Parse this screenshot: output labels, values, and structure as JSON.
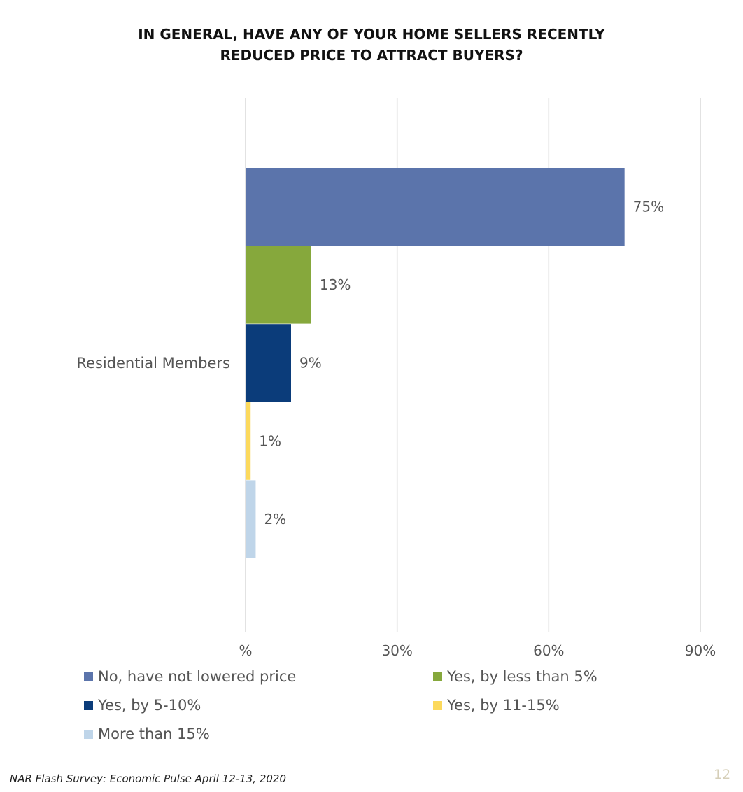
{
  "chart_data": {
    "type": "bar",
    "orientation": "horizontal",
    "title_lines": [
      "IN GENERAL, HAVE ANY OF YOUR HOME SELLERS RECENTLY",
      "REDUCED PRICE TO ATTRACT BUYERS?"
    ],
    "categories": [
      "Residential Members"
    ],
    "series": [
      {
        "name": "No, have not lowered price",
        "values": [
          75
        ],
        "label": "75%",
        "color": "#5b74ab"
      },
      {
        "name": "Yes, by less than 5%",
        "values": [
          13
        ],
        "label": "13%",
        "color": "#86a83c"
      },
      {
        "name": "Yes, by 5-10%",
        "values": [
          9
        ],
        "label": "9%",
        "color": "#0b3c7a"
      },
      {
        "name": "Yes, by 11-15%",
        "values": [
          1
        ],
        "label": "1%",
        "color": "#fcd95c"
      },
      {
        "name": "More than 15%",
        "values": [
          2
        ],
        "label": "2%",
        "color": "#bfd5e9"
      }
    ],
    "x_ticks": [
      0,
      30,
      60,
      90
    ],
    "x_tick_labels": [
      "%",
      "30%",
      "60%",
      "90%"
    ],
    "xlim": [
      0,
      90
    ],
    "grid": "vertical",
    "legend_position": "bottom"
  },
  "footer": {
    "source": "NAR Flash Survey: Economic Pulse April 12-13, 2020",
    "page_number": "12"
  },
  "colors": {
    "gridline": "#d9d9d9",
    "label_text": "#555555"
  }
}
